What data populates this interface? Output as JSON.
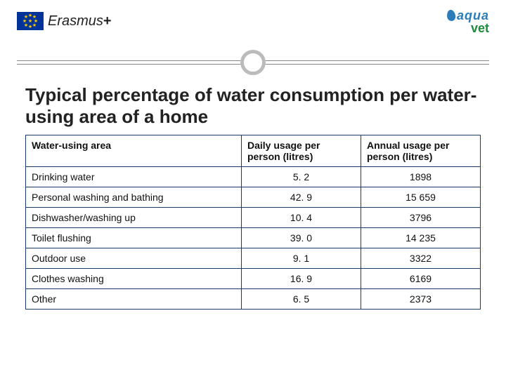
{
  "logos": {
    "erasmus_eu_label": "",
    "erasmus_text": "Erasmus",
    "erasmus_plus": "+",
    "aquavet_aqua": "aqua",
    "aquavet_vet": "vet"
  },
  "title": "Typical percentage of water consumption per water-using area of a home",
  "table": {
    "columns": [
      "Water-using area",
      "Daily usage per person (litres)",
      "Annual usage per person (litres)"
    ],
    "rows": [
      {
        "area": "Drinking water",
        "daily": "5. 2",
        "annual": "1898"
      },
      {
        "area": "Personal washing and bathing",
        "daily": "42. 9",
        "annual": "15 659"
      },
      {
        "area": "Dishwasher/washing up",
        "daily": "10. 4",
        "annual": "3796"
      },
      {
        "area": "Toilet flushing",
        "daily": "39. 0",
        "annual": "14 235"
      },
      {
        "area": "Outdoor use",
        "daily": "9. 1",
        "annual": "3322"
      },
      {
        "area": "Clothes washing",
        "daily": "16. 9",
        "annual": "6169"
      },
      {
        "area": "Other",
        "daily": "6. 5",
        "annual": "2373"
      }
    ],
    "border_color": "#1a3a6a",
    "header_fontsize": 14,
    "cell_fontsize": 14
  },
  "styles": {
    "title_fontsize": 26,
    "title_color": "#222222",
    "rule_color": "#888888",
    "circle_border_color": "#bbbbbb",
    "eu_flag_bg": "#003399",
    "eu_star_color": "#ffcc00",
    "aqua_color": "#2a7db8",
    "vet_color": "#1a8c3a"
  }
}
